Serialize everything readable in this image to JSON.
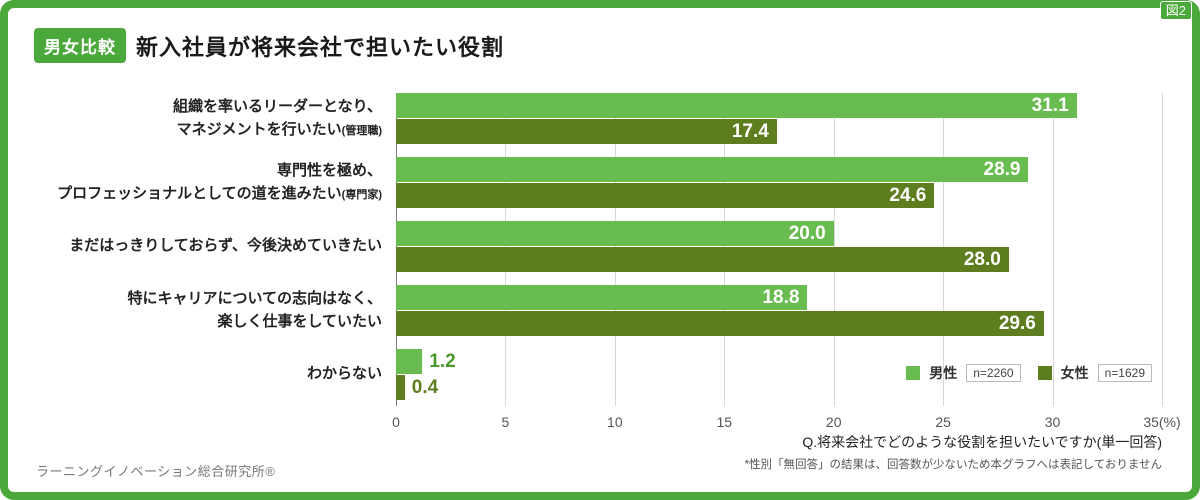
{
  "figure_label": "図2",
  "header": {
    "badge": "男女比較",
    "title": "新入社員が将来会社で担いたい役割"
  },
  "colors": {
    "frame_green": "#4aa93a",
    "male_green": "#69bd50",
    "female_olive": "#5e7d1e",
    "gridline": "#d8d8d8",
    "axis": "#7a7a7a"
  },
  "chart_data": {
    "type": "bar",
    "orientation": "horizontal",
    "title": "新入社員が将来会社で担いたい役割",
    "categories": [
      {
        "lines": [
          "組織を率いるリーダーとなり、",
          "マネジメントを行いたい"
        ],
        "suffix": "(管理職)"
      },
      {
        "lines": [
          "専門性を極め、",
          "プロフェッショナルとしての道を進みたい"
        ],
        "suffix": "(専門家)"
      },
      {
        "lines": [
          "まだはっきりしておらず、今後決めていきたい"
        ],
        "suffix": ""
      },
      {
        "lines": [
          "特にキャリアについての志向はなく、",
          "楽しく仕事をしていたい"
        ],
        "suffix": ""
      },
      {
        "lines": [
          "わからない"
        ],
        "suffix": ""
      }
    ],
    "series": [
      {
        "name": "男性",
        "n_label": "n=2260",
        "color": "#69bd50",
        "outside_label_color": "#49992f",
        "values": [
          31.1,
          28.9,
          20.0,
          18.8,
          1.2
        ]
      },
      {
        "name": "女性",
        "n_label": "n=1629",
        "color": "#5e7d1e",
        "outside_label_color": "#5e7d1e",
        "values": [
          17.4,
          24.6,
          28.0,
          29.6,
          0.4
        ]
      }
    ],
    "xlim": [
      0,
      35
    ],
    "xticks": [
      0,
      5,
      10,
      15,
      20,
      25,
      30,
      35
    ],
    "xtick_labels": [
      "0",
      "5",
      "10",
      "15",
      "20",
      "25",
      "30",
      "35(%)"
    ],
    "inside_label_min": 3,
    "grid": true,
    "legend_position": "bottom-right"
  },
  "footnotes": {
    "question": "Q.将来会社でどのような役割を担いたいですか(単一回答)",
    "note": "*性別「無回答」の結果は、回答数が少ないため本グラフへは表記しておりません"
  },
  "source": "ラーニングイノベーション総合研究所®"
}
